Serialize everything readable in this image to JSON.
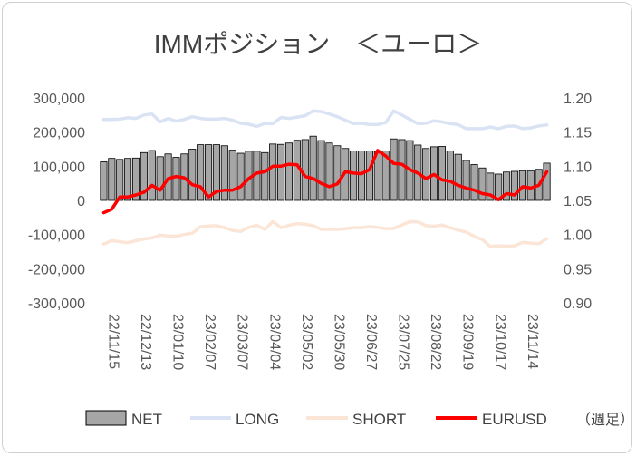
{
  "chart_data": {
    "type": "bar+line",
    "title": "IMMポジション　＜ユーロ＞",
    "unit_note": "（週足）",
    "left_axis": {
      "ylim": [
        -300000,
        300000
      ],
      "step": 100000,
      "tick_labels": [
        "-300,000",
        "-200,000",
        "-100,000",
        "0",
        "100,000",
        "200,000",
        "300,000"
      ]
    },
    "right_axis": {
      "ylim": [
        0.9,
        1.2
      ],
      "step": 0.05,
      "tick_labels": [
        "0.90",
        "0.95",
        "1.00",
        "1.05",
        "1.10",
        "1.15",
        "1.20"
      ]
    },
    "x_tick_labels": [
      "22/11/15",
      "22/12/13",
      "23/01/10",
      "23/02/07",
      "23/03/07",
      "23/04/04",
      "23/05/02",
      "23/05/30",
      "23/06/27",
      "23/07/25",
      "23/08/22",
      "23/09/19",
      "23/10/17",
      "23/11/14"
    ],
    "series": [
      {
        "name": "NET",
        "type": "bar",
        "axis": "left",
        "color": "#a6a6a6",
        "values": [
          113000,
          123000,
          120000,
          123000,
          124000,
          140000,
          146000,
          128000,
          136000,
          126000,
          136000,
          150000,
          163000,
          163000,
          163000,
          160000,
          147000,
          138000,
          144000,
          144000,
          140000,
          165000,
          164000,
          168000,
          176000,
          178000,
          188000,
          175000,
          168000,
          160000,
          152000,
          145000,
          145000,
          145000,
          143000,
          145000,
          180000,
          178000,
          175000,
          162000,
          152000,
          157000,
          158000,
          145000,
          135000,
          117000,
          105000,
          95000,
          80000,
          77000,
          83000,
          85000,
          87000,
          87000,
          91000,
          109000
        ]
      },
      {
        "name": "LONG",
        "type": "line",
        "axis": "left",
        "color": "#dae3f3",
        "values": [
          237000,
          237000,
          238000,
          242000,
          240000,
          250000,
          253000,
          230000,
          240000,
          232000,
          237000,
          245000,
          240000,
          238000,
          238000,
          240000,
          235000,
          226000,
          223000,
          217000,
          225000,
          225000,
          243000,
          240000,
          244000,
          248000,
          262000,
          260000,
          253000,
          245000,
          235000,
          225000,
          226000,
          222000,
          222000,
          228000,
          262000,
          250000,
          237000,
          225000,
          226000,
          233000,
          230000,
          225000,
          222000,
          210000,
          210000,
          210000,
          215000,
          210000,
          217000,
          218000,
          210000,
          212000,
          218000,
          221000
        ]
      },
      {
        "name": "SHORT",
        "type": "line",
        "axis": "left",
        "color": "#fbe5d6",
        "values": [
          -128000,
          -118000,
          -121000,
          -124000,
          -118000,
          -113000,
          -110000,
          -102000,
          -104000,
          -105000,
          -100000,
          -96000,
          -77000,
          -75000,
          -74000,
          -80000,
          -88000,
          -91000,
          -79000,
          -73000,
          -85000,
          -62000,
          -80000,
          -73000,
          -68000,
          -70000,
          -74000,
          -85000,
          -85000,
          -85000,
          -83000,
          -80000,
          -80000,
          -77000,
          -79000,
          -83000,
          -82000,
          -72000,
          -62000,
          -63000,
          -74000,
          -76000,
          -72000,
          -80000,
          -87000,
          -93000,
          -105000,
          -115000,
          -135000,
          -133000,
          -134000,
          -133000,
          -123000,
          -125000,
          -127000,
          -112000
        ]
      },
      {
        "name": "EURUSD",
        "type": "line",
        "axis": "right",
        "color": "#ff0000",
        "values": [
          1.032,
          1.037,
          1.055,
          1.055,
          1.058,
          1.062,
          1.072,
          1.065,
          1.082,
          1.085,
          1.083,
          1.073,
          1.07,
          1.055,
          1.063,
          1.065,
          1.065,
          1.07,
          1.082,
          1.09,
          1.092,
          1.1,
          1.1,
          1.103,
          1.102,
          1.085,
          1.082,
          1.075,
          1.07,
          1.074,
          1.092,
          1.09,
          1.089,
          1.095,
          1.123,
          1.115,
          1.104,
          1.103,
          1.095,
          1.09,
          1.082,
          1.088,
          1.08,
          1.078,
          1.072,
          1.068,
          1.065,
          1.06,
          1.058,
          1.051,
          1.06,
          1.058,
          1.07,
          1.068,
          1.072,
          1.092
        ]
      }
    ],
    "legend": {
      "placement": "bottom",
      "entries": [
        "NET",
        "LONG",
        "SHORT",
        "EURUSD"
      ]
    },
    "grid": false
  }
}
